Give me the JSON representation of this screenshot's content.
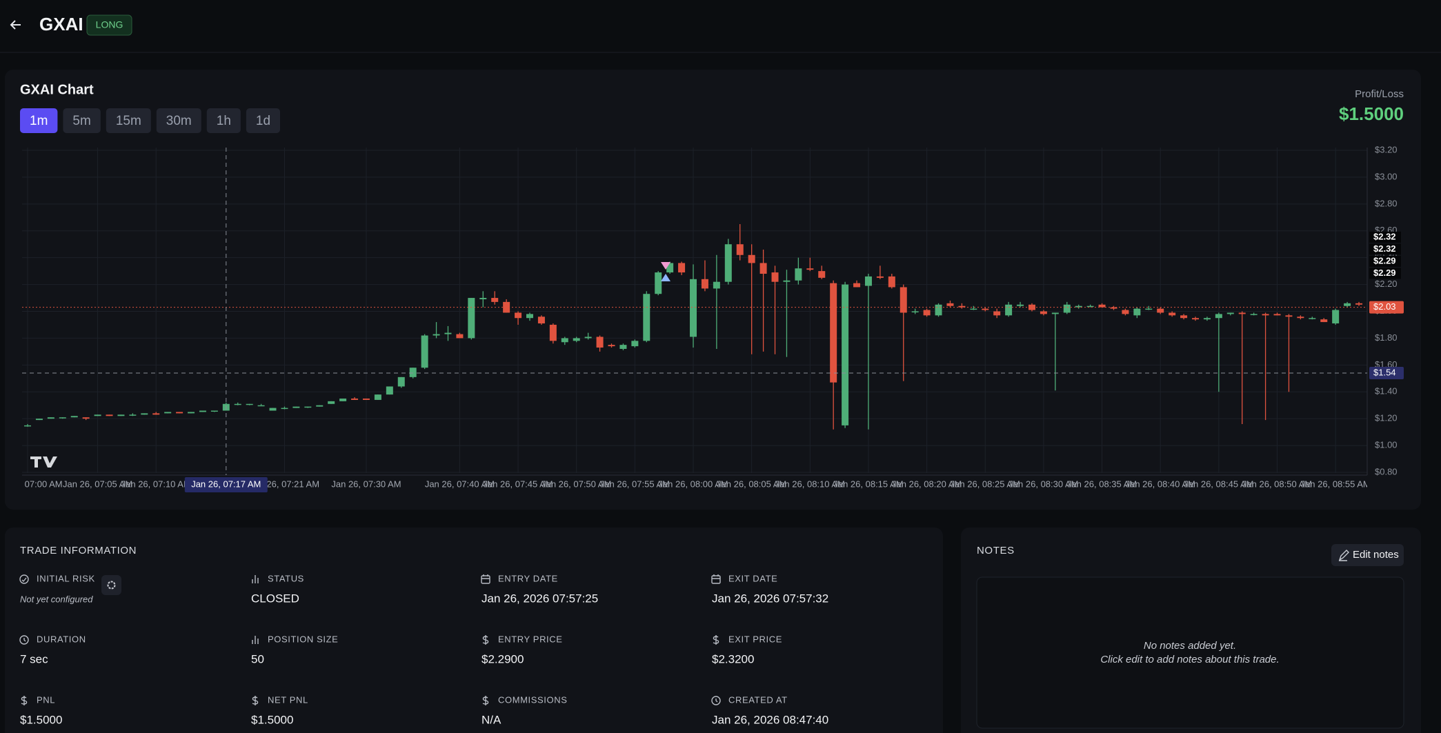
{
  "header": {
    "symbol": "GXAI",
    "side": "LONG"
  },
  "chart_panel": {
    "title": "GXAI Chart",
    "timeframes": [
      "1m",
      "5m",
      "15m",
      "30m",
      "1h",
      "1d"
    ],
    "active_timeframe": "1m",
    "pnl_label": "Profit/Loss",
    "pnl_value": "$1.5000"
  },
  "chart_data": {
    "type": "candlestick",
    "up_color": "#4fae78",
    "down_color": "#e0533f",
    "categories": [
      "Jan 26, 07:00 AM",
      null,
      null,
      null,
      null,
      null,
      "Jan 26, 07:05 AM",
      null,
      null,
      null,
      null,
      "Jan 26, 07:10 AM",
      null,
      null,
      null,
      null,
      null,
      "Jan 26, 07:17 AM",
      null,
      null,
      null,
      null,
      "Jan 26, 07:21 AM",
      null,
      null,
      null,
      null,
      null,
      null,
      "Jan 26, 07:30 AM",
      null,
      null,
      null,
      null,
      null,
      null,
      null,
      "Jan 26, 07:40 AM",
      null,
      null,
      null,
      null,
      "Jan 26, 07:45 AM",
      null,
      null,
      null,
      null,
      "Jan 26, 07:50 AM",
      null,
      null,
      null,
      null,
      "Jan 26, 07:55 AM",
      null,
      null,
      null,
      null,
      "Jan 26, 08:00 AM",
      null,
      null,
      null,
      null,
      "Jan 26, 08:05 AM",
      null,
      null,
      null,
      null,
      "Jan 26, 08:10 AM",
      null,
      null,
      null,
      null,
      "Jan 26, 08:15 AM",
      null,
      null,
      null,
      null,
      "Jan 26, 08:20 AM",
      null,
      null,
      null,
      null,
      "Jan 26, 08:25 AM",
      null,
      null,
      null,
      null,
      "Jan 26, 08:30 AM",
      null,
      null,
      null,
      null,
      "Jan 26, 08:35 AM",
      null,
      null,
      null,
      null,
      "Jan 26, 08:40 AM",
      null,
      null,
      null,
      null,
      "Jan 26, 08:45 AM",
      null,
      null,
      null,
      null,
      "Jan 26, 08:50 AM",
      null,
      null,
      null,
      null,
      "Jan 26, 08:55 AM",
      null,
      null
    ],
    "candles": [
      [
        1.15,
        1.16,
        1.14,
        1.15
      ],
      [
        1.19,
        1.2,
        1.19,
        1.2
      ],
      [
        1.2,
        1.21,
        1.2,
        1.21
      ],
      [
        1.21,
        1.21,
        1.2,
        1.21
      ],
      [
        1.21,
        1.22,
        1.21,
        1.22
      ],
      [
        1.21,
        1.21,
        1.19,
        1.2
      ],
      [
        1.22,
        1.23,
        1.22,
        1.23
      ],
      [
        1.23,
        1.23,
        1.22,
        1.22
      ],
      [
        1.22,
        1.23,
        1.22,
        1.23
      ],
      [
        1.23,
        1.24,
        1.22,
        1.23
      ],
      [
        1.23,
        1.24,
        1.23,
        1.24
      ],
      [
        1.24,
        1.25,
        1.23,
        1.23
      ],
      [
        1.24,
        1.25,
        1.24,
        1.25
      ],
      [
        1.25,
        1.25,
        1.24,
        1.24
      ],
      [
        1.24,
        1.25,
        1.24,
        1.25
      ],
      [
        1.25,
        1.26,
        1.25,
        1.26
      ],
      [
        1.26,
        1.26,
        1.25,
        1.26
      ],
      [
        1.26,
        1.32,
        1.26,
        1.31
      ],
      [
        1.31,
        1.32,
        1.3,
        1.31
      ],
      [
        1.31,
        1.31,
        1.3,
        1.31
      ],
      [
        1.3,
        1.31,
        1.3,
        1.3
      ],
      [
        1.26,
        1.28,
        1.26,
        1.28
      ],
      [
        1.28,
        1.29,
        1.27,
        1.28
      ],
      [
        1.28,
        1.29,
        1.28,
        1.29
      ],
      [
        1.29,
        1.29,
        1.28,
        1.29
      ],
      [
        1.29,
        1.3,
        1.29,
        1.3
      ],
      [
        1.31,
        1.33,
        1.31,
        1.33
      ],
      [
        1.33,
        1.35,
        1.33,
        1.35
      ],
      [
        1.35,
        1.36,
        1.34,
        1.34
      ],
      [
        1.35,
        1.35,
        1.34,
        1.34
      ],
      [
        1.34,
        1.38,
        1.34,
        1.38
      ],
      [
        1.38,
        1.44,
        1.38,
        1.44
      ],
      [
        1.44,
        1.51,
        1.43,
        1.51
      ],
      [
        1.51,
        1.58,
        1.5,
        1.58
      ],
      [
        1.58,
        1.83,
        1.57,
        1.82
      ],
      [
        1.82,
        1.92,
        1.8,
        1.83
      ],
      [
        1.83,
        1.89,
        1.78,
        1.84
      ],
      [
        1.83,
        1.84,
        1.8,
        1.8
      ],
      [
        1.8,
        2.1,
        1.79,
        2.1
      ],
      [
        2.09,
        2.15,
        2.03,
        2.1
      ],
      [
        2.1,
        2.15,
        2.05,
        2.07
      ],
      [
        2.07,
        2.09,
        1.99,
        1.99
      ],
      [
        1.99,
        2.0,
        1.9,
        1.95
      ],
      [
        1.95,
        1.99,
        1.93,
        1.98
      ],
      [
        1.96,
        1.97,
        1.9,
        1.91
      ],
      [
        1.9,
        1.91,
        1.76,
        1.78
      ],
      [
        1.77,
        1.81,
        1.75,
        1.8
      ],
      [
        1.78,
        1.81,
        1.77,
        1.8
      ],
      [
        1.8,
        1.84,
        1.79,
        1.81
      ],
      [
        1.81,
        1.82,
        1.7,
        1.73
      ],
      [
        1.75,
        1.76,
        1.73,
        1.74
      ],
      [
        1.72,
        1.76,
        1.71,
        1.75
      ],
      [
        1.74,
        1.79,
        1.73,
        1.78
      ],
      [
        1.78,
        2.15,
        1.77,
        2.13
      ],
      [
        2.13,
        2.3,
        2.12,
        2.29
      ],
      [
        2.29,
        2.37,
        2.28,
        2.36
      ],
      [
        2.36,
        2.37,
        2.27,
        2.29
      ],
      [
        1.81,
        2.35,
        1.73,
        2.24
      ],
      [
        2.24,
        2.38,
        2.15,
        2.17
      ],
      [
        2.17,
        2.42,
        1.72,
        2.22
      ],
      [
        2.22,
        2.54,
        2.2,
        2.5
      ],
      [
        2.5,
        2.65,
        2.38,
        2.42
      ],
      [
        2.42,
        2.5,
        1.68,
        2.36
      ],
      [
        2.36,
        2.46,
        1.7,
        2.28
      ],
      [
        2.29,
        2.34,
        1.68,
        2.22
      ],
      [
        2.22,
        2.31,
        1.66,
        2.23
      ],
      [
        2.23,
        2.4,
        2.2,
        2.32
      ],
      [
        2.32,
        2.4,
        2.3,
        2.31
      ],
      [
        2.3,
        2.34,
        2.24,
        2.25
      ],
      [
        2.21,
        2.23,
        1.12,
        1.47
      ],
      [
        1.15,
        2.22,
        1.13,
        2.2
      ],
      [
        2.21,
        2.23,
        2.18,
        2.18
      ],
      [
        2.19,
        2.28,
        1.12,
        2.26
      ],
      [
        2.26,
        2.34,
        2.24,
        2.25
      ],
      [
        2.26,
        2.28,
        2.17,
        2.18
      ],
      [
        2.18,
        2.2,
        1.48,
        1.99
      ],
      [
        2.0,
        2.02,
        1.98,
        2.0
      ],
      [
        2.01,
        2.02,
        1.96,
        1.97
      ],
      [
        1.97,
        2.06,
        1.96,
        2.05
      ],
      [
        2.06,
        2.08,
        2.03,
        2.04
      ],
      [
        2.04,
        2.06,
        2.02,
        2.03
      ],
      [
        2.02,
        2.04,
        2.01,
        2.02
      ],
      [
        2.02,
        2.03,
        2.0,
        2.01
      ],
      [
        2.0,
        2.02,
        1.95,
        1.97
      ],
      [
        1.97,
        2.07,
        1.96,
        2.05
      ],
      [
        2.04,
        2.07,
        2.03,
        2.05
      ],
      [
        2.05,
        2.06,
        2.0,
        2.01
      ],
      [
        2.0,
        2.01,
        1.97,
        1.98
      ],
      [
        1.98,
        1.99,
        1.41,
        1.99
      ],
      [
        1.99,
        2.07,
        1.98,
        2.05
      ],
      [
        2.03,
        2.05,
        2.02,
        2.04
      ],
      [
        2.04,
        2.05,
        2.03,
        2.04
      ],
      [
        2.05,
        2.06,
        2.03,
        2.03
      ],
      [
        2.03,
        2.04,
        2.01,
        2.02
      ],
      [
        2.01,
        2.02,
        1.97,
        1.98
      ],
      [
        1.97,
        2.03,
        1.95,
        2.02
      ],
      [
        2.02,
        2.04,
        2.01,
        2.02
      ],
      [
        2.02,
        2.03,
        1.98,
        1.99
      ],
      [
        1.99,
        2.0,
        1.96,
        1.97
      ],
      [
        1.97,
        1.98,
        1.94,
        1.95
      ],
      [
        1.95,
        1.96,
        1.93,
        1.94
      ],
      [
        1.94,
        1.96,
        1.93,
        1.95
      ],
      [
        1.95,
        1.99,
        1.4,
        1.98
      ],
      [
        1.98,
        1.99,
        1.97,
        1.99
      ],
      [
        1.99,
        2.0,
        1.16,
        1.98
      ],
      [
        1.98,
        1.99,
        1.97,
        1.98
      ],
      [
        1.98,
        1.99,
        1.19,
        1.97
      ],
      [
        1.98,
        1.99,
        1.97,
        1.97
      ],
      [
        1.97,
        1.98,
        1.4,
        1.96
      ],
      [
        1.96,
        1.97,
        1.94,
        1.95
      ],
      [
        1.95,
        1.96,
        1.94,
        1.95
      ],
      [
        1.94,
        1.95,
        1.92,
        1.92
      ],
      [
        1.91,
        2.02,
        1.9,
        2.01
      ],
      [
        2.04,
        2.07,
        2.03,
        2.06
      ],
      [
        2.06,
        2.07,
        2.04,
        2.05
      ]
    ],
    "ylim": [
      0.8,
      3.2
    ],
    "yticks": [
      {
        "value": 0.8,
        "label": "$0.80"
      },
      {
        "value": 1.0,
        "label": "$1.00"
      },
      {
        "value": 1.2,
        "label": "$1.20"
      },
      {
        "value": 1.4,
        "label": "$1.40"
      },
      {
        "value": 1.6,
        "label": "$1.60"
      },
      {
        "value": 1.8,
        "label": "$1.80"
      },
      {
        "value": 2.0,
        "label": "$2.00"
      },
      {
        "value": 2.2,
        "label": "$2.20"
      },
      {
        "value": 2.4,
        "label": "$2.40"
      },
      {
        "value": 2.6,
        "label": "$2.60"
      },
      {
        "value": 2.8,
        "label": "$2.80"
      },
      {
        "value": 3.0,
        "label": "$3.00"
      },
      {
        "value": 3.2,
        "label": "$3.20"
      }
    ],
    "grid": true,
    "price_line": {
      "value": 2.03,
      "label": "$2.03"
    },
    "crosshair": {
      "category": "Jan 26, 07:17 AM",
      "value": 1.54,
      "label": "$1.54"
    },
    "trade_levels": [
      {
        "value": 2.32,
        "label": "$2.32"
      },
      {
        "value": 2.32,
        "label": "$2.32"
      },
      {
        "value": 2.29,
        "label": "$2.29"
      },
      {
        "value": 2.29,
        "label": "$2.29"
      }
    ]
  },
  "trade_info": {
    "title": "TRADE INFORMATION",
    "fields": [
      {
        "label": "INITIAL RISK",
        "value": "Not yet configured"
      },
      {
        "label": "STATUS",
        "value": "CLOSED"
      },
      {
        "label": "ENTRY DATE",
        "value": "Jan 26, 2026 07:57:25"
      },
      {
        "label": "EXIT DATE",
        "value": "Jan 26, 2026 07:57:32"
      },
      {
        "label": "DURATION",
        "value": "7 sec"
      },
      {
        "label": "POSITION SIZE",
        "value": "50"
      },
      {
        "label": "ENTRY PRICE",
        "value": "$2.2900"
      },
      {
        "label": "EXIT PRICE",
        "value": "$2.3200"
      },
      {
        "label": "PNL",
        "value": "$1.5000"
      },
      {
        "label": "NET PNL",
        "value": "$1.5000"
      },
      {
        "label": "COMMISSIONS",
        "value": "N/A"
      },
      {
        "label": "CREATED AT",
        "value": "Jan 26, 2026 08:47:40"
      }
    ]
  },
  "notes": {
    "title": "NOTES",
    "edit_button": "Edit notes",
    "empty_lines": [
      "No notes added yet.",
      "Click edit to add notes about this trade."
    ]
  }
}
